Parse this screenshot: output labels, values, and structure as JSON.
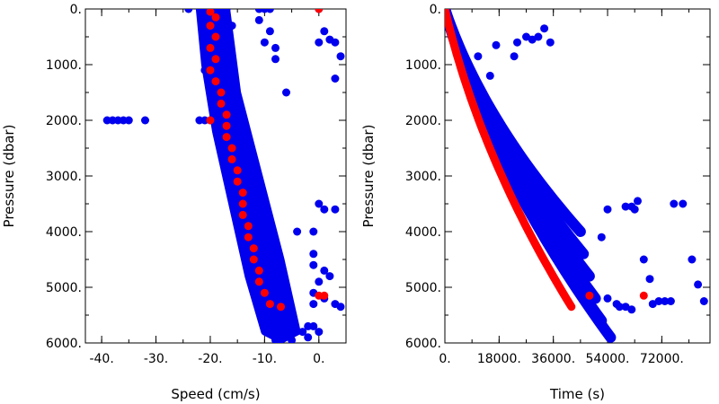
{
  "chart_data": [
    {
      "type": "scatter",
      "xlabel": "Speed (cm/s)",
      "ylabel": "Pressure (dbar)",
      "xlim": [
        -43,
        5
      ],
      "ylim": [
        6000,
        0
      ],
      "y_inverted": true,
      "grid": false,
      "x_ticks": [
        -40,
        -30,
        -20,
        -10,
        0
      ],
      "x_tick_labels": [
        "-40.",
        "-30.",
        "-20.",
        "-10.",
        "0."
      ],
      "y_ticks": [
        0,
        1000,
        2000,
        3000,
        4000,
        5000,
        6000
      ],
      "y_tick_labels": [
        "0.",
        "1000.",
        "2000.",
        "3000.",
        "4000.",
        "5000.",
        "6000."
      ],
      "colors": {
        "blue": "#0000ee",
        "red": "#ff0000"
      },
      "series": [
        {
          "color": "blue",
          "points": [
            [
              -24,
              0
            ],
            [
              -21,
              0
            ],
            [
              -19,
              0
            ],
            [
              -17,
              0
            ],
            [
              -11,
              0
            ],
            [
              -10,
              0
            ],
            [
              -9,
              0
            ],
            [
              -21,
              100
            ],
            [
              -20,
              150
            ],
            [
              -18,
              200
            ],
            [
              -16,
              300
            ],
            [
              -11,
              200
            ],
            [
              -9,
              400
            ],
            [
              -10,
              600
            ],
            [
              -8,
              700
            ],
            [
              -8,
              900
            ],
            [
              -21,
              400
            ],
            [
              -20,
              600
            ],
            [
              -19,
              900
            ],
            [
              -21,
              1100
            ],
            [
              -20,
              1300
            ],
            [
              -18,
              1200
            ],
            [
              -19,
              1500
            ],
            [
              -17,
              1400
            ],
            [
              -18,
              1700
            ],
            [
              -16,
              1600
            ],
            [
              -19,
              1900
            ],
            [
              -17,
              1900
            ],
            [
              -15,
              2000
            ],
            [
              -20,
              2000
            ],
            [
              -18,
              2100
            ],
            [
              -17,
              2300
            ],
            [
              -15,
              2200
            ],
            [
              -16,
              2500
            ],
            [
              -14,
              2400
            ],
            [
              -17,
              2800
            ],
            [
              -15,
              2700
            ],
            [
              -13,
              2800
            ],
            [
              -16,
              3100
            ],
            [
              -14,
              3000
            ],
            [
              -12,
              3100
            ],
            [
              -15,
              3400
            ],
            [
              -13,
              3300
            ],
            [
              -11,
              3400
            ],
            [
              -14,
              3700
            ],
            [
              -12,
              3700
            ],
            [
              -10,
              3700
            ],
            [
              -14,
              4000
            ],
            [
              -12,
              4000
            ],
            [
              -10,
              4100
            ],
            [
              -13,
              4300
            ],
            [
              -11,
              4300
            ],
            [
              -9,
              4400
            ],
            [
              -12,
              4600
            ],
            [
              -10,
              4600
            ],
            [
              -8,
              4700
            ],
            [
              -12,
              4900
            ],
            [
              -9,
              4900
            ],
            [
              -7,
              5000
            ],
            [
              -11,
              5200
            ],
            [
              -8,
              5200
            ],
            [
              -6,
              5300
            ],
            [
              -10,
              5500
            ],
            [
              -7,
              5500
            ],
            [
              -5,
              5600
            ],
            [
              -9,
              5800
            ],
            [
              -6,
              5800
            ],
            [
              -3,
              5800
            ],
            [
              -8,
              5950
            ],
            [
              -5,
              5950
            ],
            [
              -2,
              5900
            ],
            [
              -1,
              5700
            ],
            [
              -39,
              2000
            ],
            [
              -38,
              2000
            ],
            [
              -37,
              2000
            ],
            [
              -36,
              2000
            ],
            [
              -35,
              2000
            ],
            [
              -32,
              2000
            ],
            [
              -22,
              2000
            ],
            [
              -21,
              2000
            ],
            [
              0,
              0
            ],
            [
              0,
              600
            ],
            [
              1,
              400
            ],
            [
              2,
              550
            ],
            [
              3,
              600
            ],
            [
              4,
              850
            ],
            [
              3,
              1250
            ],
            [
              -6,
              1500
            ],
            [
              0,
              3500
            ],
            [
              1,
              3600
            ],
            [
              3,
              3600
            ],
            [
              -1,
              4000
            ],
            [
              -4,
              4000
            ],
            [
              -1,
              4400
            ],
            [
              -1,
              4600
            ],
            [
              1,
              4700
            ],
            [
              2,
              4800
            ],
            [
              0,
              4900
            ],
            [
              -1,
              5100
            ],
            [
              1,
              5200
            ],
            [
              3,
              5300
            ],
            [
              4,
              5350
            ],
            [
              -1,
              5300
            ],
            [
              -2,
              5700
            ],
            [
              0,
              5800
            ]
          ]
        },
        {
          "color": "red",
          "points": [
            [
              -20,
              50
            ],
            [
              -19,
              150
            ],
            [
              -20,
              300
            ],
            [
              -19,
              500
            ],
            [
              -20,
              700
            ],
            [
              -19,
              900
            ],
            [
              -20,
              1100
            ],
            [
              -19,
              1300
            ],
            [
              -18,
              1500
            ],
            [
              -18,
              1700
            ],
            [
              -17,
              1900
            ],
            [
              -20,
              2000
            ],
            [
              -17,
              2100
            ],
            [
              -17,
              2300
            ],
            [
              -16,
              2500
            ],
            [
              -16,
              2700
            ],
            [
              -15,
              2900
            ],
            [
              -15,
              3100
            ],
            [
              -14,
              3300
            ],
            [
              -14,
              3500
            ],
            [
              -14,
              3700
            ],
            [
              -13,
              3900
            ],
            [
              -13,
              4100
            ],
            [
              -12,
              4300
            ],
            [
              -12,
              4500
            ],
            [
              -11,
              4700
            ],
            [
              -11,
              4900
            ],
            [
              -10,
              5100
            ],
            [
              -9,
              5300
            ],
            [
              -7,
              5350
            ],
            [
              0,
              0
            ],
            [
              0,
              5150
            ],
            [
              1,
              5150
            ]
          ]
        }
      ]
    },
    {
      "type": "scatter",
      "xlabel": "Time (s)",
      "ylabel": "Pressure (dbar)",
      "xlim": [
        0,
        88000
      ],
      "ylim": [
        6000,
        0
      ],
      "y_inverted": true,
      "grid": false,
      "x_ticks": [
        0,
        18000,
        36000,
        54000,
        72000
      ],
      "x_tick_labels": [
        "0.",
        "18000.",
        "36000.",
        "54000.",
        "72000."
      ],
      "y_ticks": [
        0,
        1000,
        2000,
        3000,
        4000,
        5000,
        6000
      ],
      "y_tick_labels": [
        "0.",
        "1000.",
        "2000.",
        "3000.",
        "4000.",
        "5000.",
        "6000."
      ],
      "colors": {
        "blue": "#0000ee",
        "red": "#ff0000"
      },
      "series": [
        {
          "color": "blue",
          "curves": [
            {
              "max_time": 45000,
              "max_pressure": 4000
            },
            {
              "max_time": 46000,
              "max_pressure": 4400
            },
            {
              "max_time": 48000,
              "max_pressure": 4800
            },
            {
              "max_time": 50000,
              "max_pressure": 5200
            },
            {
              "max_time": 52000,
              "max_pressure": 5600
            },
            {
              "max_time": 55000,
              "max_pressure": 5900
            }
          ],
          "points": [
            [
              8000,
              1500
            ],
            [
              11000,
              850
            ],
            [
              15000,
              1200
            ],
            [
              17000,
              650
            ],
            [
              23000,
              850
            ],
            [
              24000,
              600
            ],
            [
              27000,
              500
            ],
            [
              29000,
              550
            ],
            [
              31000,
              500
            ],
            [
              33000,
              350
            ],
            [
              35000,
              600
            ],
            [
              52000,
              4100
            ],
            [
              54000,
              3600
            ],
            [
              57000,
              5300
            ],
            [
              58000,
              5350
            ],
            [
              60000,
              5350
            ],
            [
              62000,
              5400
            ],
            [
              54000,
              5200
            ],
            [
              60000,
              3550
            ],
            [
              62000,
              3550
            ],
            [
              63000,
              3600
            ],
            [
              64000,
              3450
            ],
            [
              66000,
              4500
            ],
            [
              68000,
              4850
            ],
            [
              69000,
              5300
            ],
            [
              71000,
              5250
            ],
            [
              73000,
              5250
            ],
            [
              75000,
              5250
            ],
            [
              76000,
              3500
            ],
            [
              79000,
              3500
            ],
            [
              82000,
              4500
            ],
            [
              84000,
              4950
            ],
            [
              86000,
              5250
            ]
          ]
        },
        {
          "color": "red",
          "curves": [
            {
              "max_time": 42000,
              "max_pressure": 5350
            }
          ],
          "points": [
            [
              48000,
              5150
            ],
            [
              66000,
              5150
            ]
          ]
        }
      ]
    }
  ]
}
